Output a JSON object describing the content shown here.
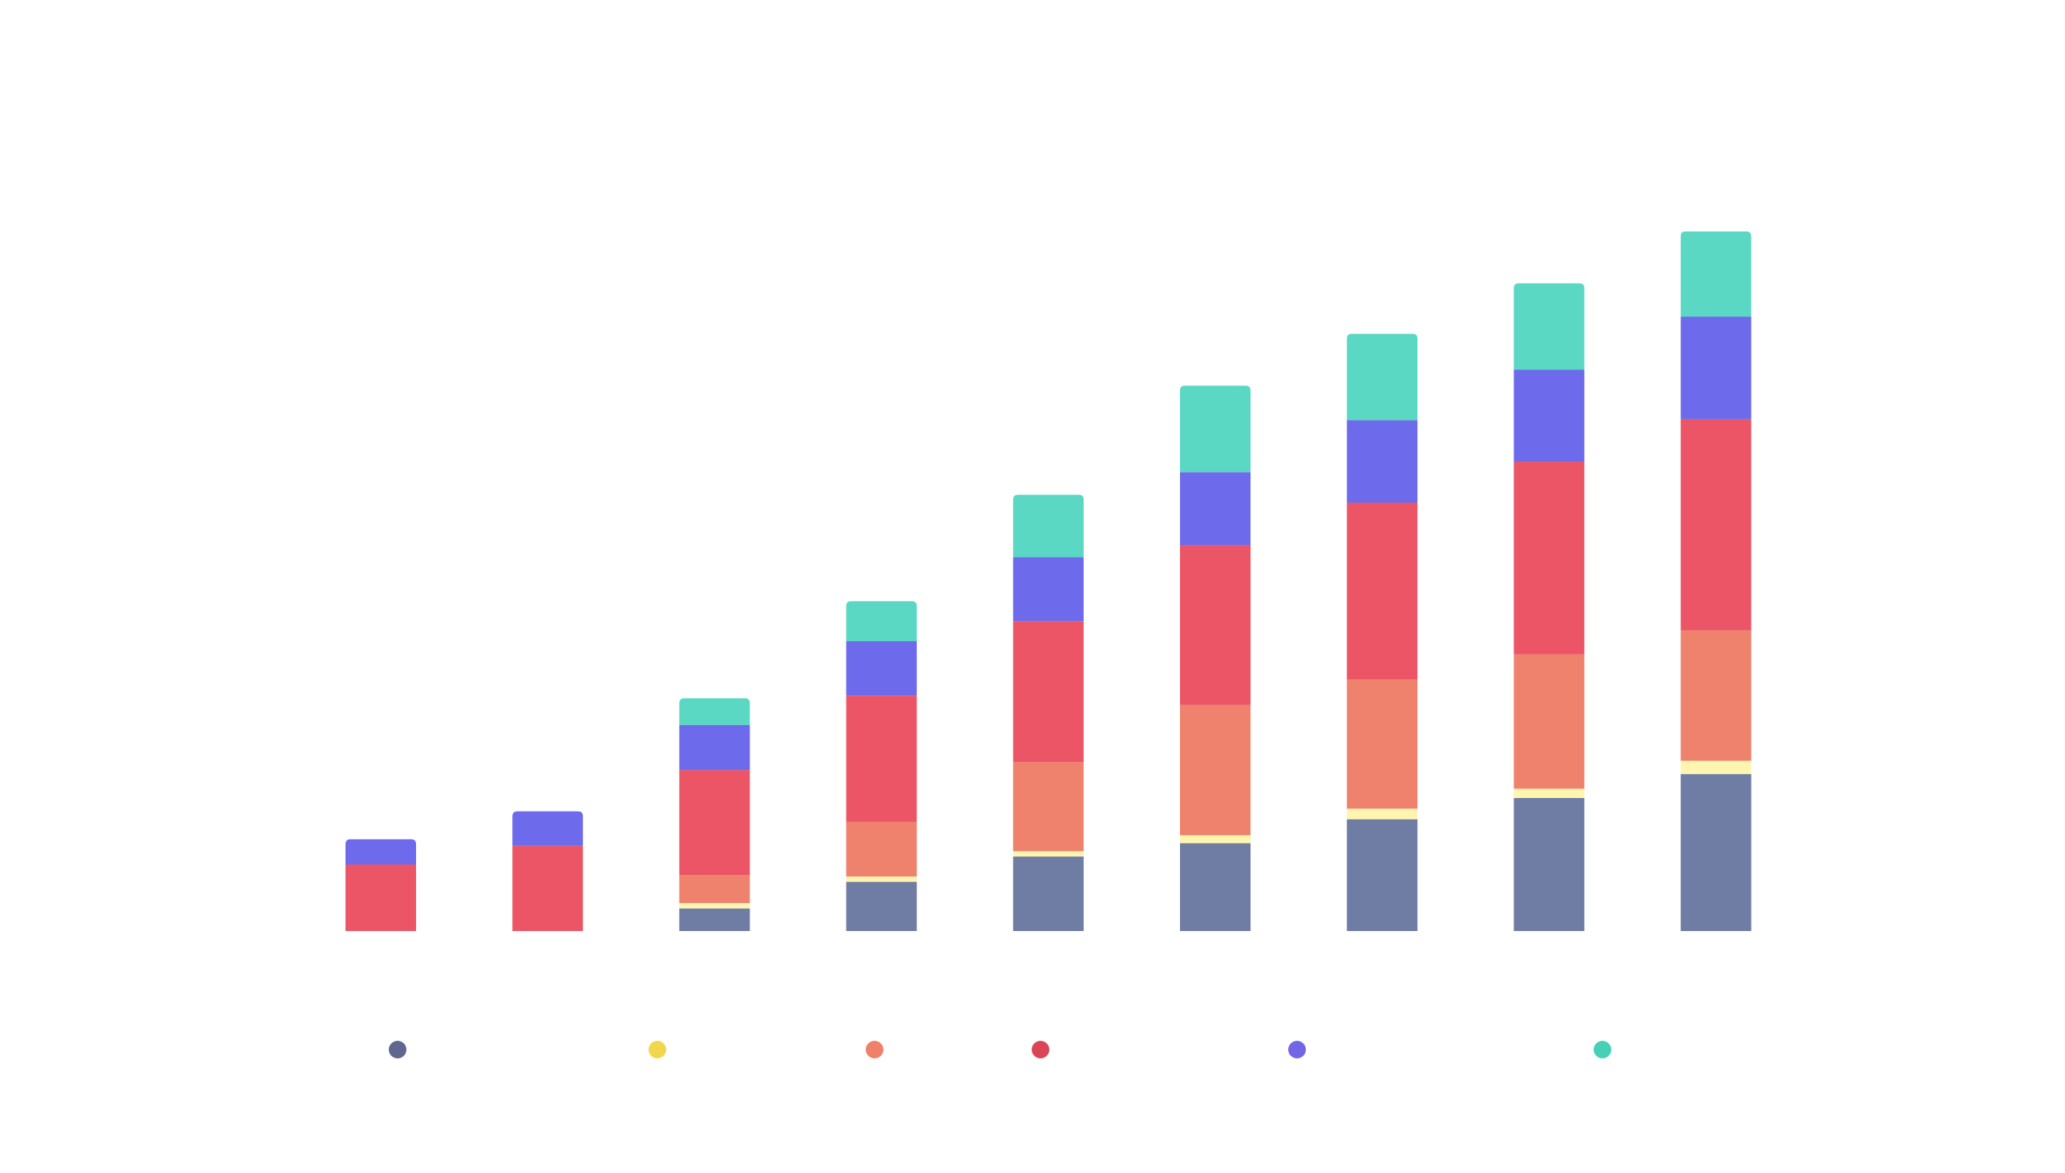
{
  "chart_data": {
    "type": "bar",
    "stacked": true,
    "title": "",
    "xlabel": "",
    "ylabel": "",
    "grid": false,
    "legend_placement": "bottom",
    "categories": [
      "",
      "",
      "",
      "",
      "",
      "",
      "",
      "",
      ""
    ],
    "ylim": [
      0,
      560
    ],
    "series": [
      {
        "color": "#6f7ca4",
        "legend_color": "#5f6690",
        "values": [
          0,
          0,
          17,
          37,
          56,
          66,
          84,
          100,
          118
        ]
      },
      {
        "color": "#fff5b0",
        "legend_color": "#f2d74e",
        "values": [
          0,
          0,
          4,
          4,
          4,
          6,
          8,
          7,
          10
        ]
      },
      {
        "color": "#ee826c",
        "legend_color": "#ef8069",
        "values": [
          0,
          0,
          21,
          41,
          67,
          98,
          97,
          101,
          98
        ]
      },
      {
        "color": "#ec5565",
        "legend_color": "#db4558",
        "values": [
          50,
          64,
          79,
          95,
          106,
          120,
          133,
          145,
          159
        ]
      },
      {
        "color": "#6d6aeb",
        "legend_color": "#7366e6",
        "values": [
          19,
          26,
          34,
          41,
          48,
          55,
          62,
          69,
          77
        ]
      },
      {
        "color": "#5ad8c4",
        "legend_color": "#46d0b8",
        "values": [
          0,
          0,
          20,
          30,
          47,
          65,
          65,
          65,
          64
        ]
      }
    ]
  }
}
